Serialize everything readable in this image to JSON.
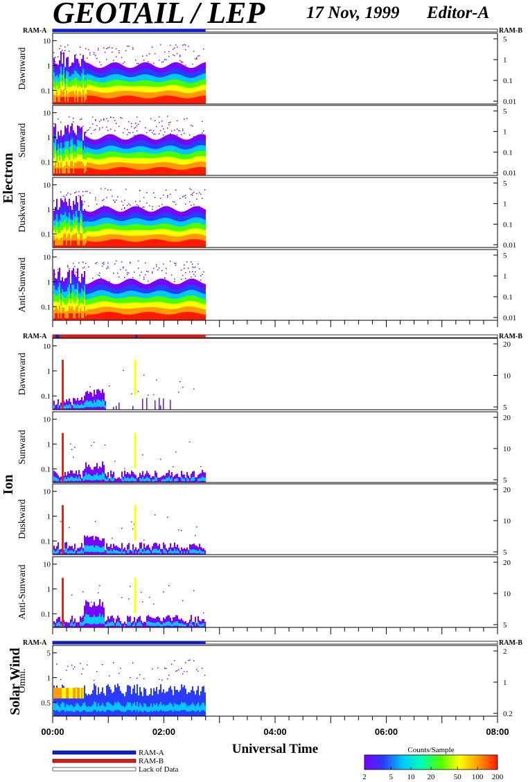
{
  "header": {
    "title": "GEOTAIL / LEP",
    "date": "17 Nov, 1999",
    "editor": "Editor-A"
  },
  "colors": {
    "ram_a": "#0a1fd1",
    "ram_b": "#e01818",
    "lack": "#ffffff",
    "colorscale": [
      "#7a00ff",
      "#2a3cff",
      "#00c8ff",
      "#00ffb4",
      "#4cff00",
      "#ffff00",
      "#ff9a00",
      "#ff1a00"
    ]
  },
  "chart_data": {
    "type": "heatmap",
    "x_axis": {
      "label": "Universal Time",
      "range_hours": [
        0,
        8
      ],
      "ticks": [
        "00:00",
        "02:00",
        "04:00",
        "06:00",
        "08:00"
      ],
      "data_end_hour": 2.75
    },
    "groups": [
      {
        "name": "Electron",
        "ram_left": "RAM-A",
        "ram_right": "RAM-B",
        "ram_bar": [
          {
            "from": 0,
            "to": 2.75,
            "mode": "ram_a"
          }
        ],
        "panels": [
          {
            "name": "Dawnward",
            "left_ticks": [
              "10",
              "1",
              "0.1"
            ],
            "right_ticks": [
              "5",
              "1",
              "0.1",
              "0.01"
            ]
          },
          {
            "name": "Sunward",
            "left_ticks": [
              "10",
              "1",
              "0.1"
            ],
            "right_ticks": [
              "5",
              "1",
              "0.1",
              "0.01"
            ]
          },
          {
            "name": "Duskward",
            "left_ticks": [
              "10",
              "1",
              "0.1"
            ],
            "right_ticks": [
              "5",
              "1",
              "0.1",
              "0.01"
            ]
          },
          {
            "name": "Anti-Sunward",
            "left_ticks": [
              "10",
              "1",
              "0.1"
            ],
            "right_ticks": [
              "5",
              "1",
              "0.1",
              "0.01"
            ]
          }
        ]
      },
      {
        "name": "Ion",
        "ram_left": "RAM-A",
        "ram_right": "RAM-B",
        "ram_bar": [
          {
            "from": 0,
            "to": 0.05,
            "mode": "ram_b"
          },
          {
            "from": 0.05,
            "to": 0.12,
            "mode": "ram_a"
          },
          {
            "from": 0.12,
            "to": 1.48,
            "mode": "ram_b"
          },
          {
            "from": 1.48,
            "to": 1.52,
            "mode": "ram_a"
          },
          {
            "from": 1.52,
            "to": 2.75,
            "mode": "ram_b"
          }
        ],
        "panels": [
          {
            "name": "Dawnward",
            "left_ticks": [
              "10",
              "1",
              "0.1"
            ],
            "right_ticks": [
              "20",
              "10",
              "5"
            ]
          },
          {
            "name": "Sunward",
            "left_ticks": [
              "10",
              "1",
              "0.1"
            ],
            "right_ticks": [
              "20",
              "10",
              "5"
            ]
          },
          {
            "name": "Duskward",
            "left_ticks": [
              "10",
              "1",
              "0.1"
            ],
            "right_ticks": [
              "20",
              "10",
              "5"
            ]
          },
          {
            "name": "Anti-Sunward",
            "left_ticks": [
              "10",
              "1",
              "0.1"
            ],
            "right_ticks": [
              "20",
              "10",
              "5"
            ]
          }
        ]
      },
      {
        "name": "Solar Wind",
        "ram_left": "RAM-A",
        "ram_right": "RAM-B",
        "ram_bar": [
          {
            "from": 0,
            "to": 2.75,
            "mode": "ram_a"
          }
        ],
        "panels": [
          {
            "name": "Omni.",
            "left_ticks": [
              "5",
              "1",
              "0.5"
            ],
            "right_ticks": [
              "2",
              "1",
              "0.2"
            ]
          }
        ]
      }
    ],
    "legend": [
      {
        "label": "RAM-A",
        "mode": "ram_a"
      },
      {
        "label": "RAM-B",
        "mode": "ram_b"
      },
      {
        "label": "Lack of Data",
        "mode": "lack"
      }
    ],
    "colorbar": {
      "title": "Counts/Sample",
      "ticks": [
        "2",
        "5",
        "10",
        "20",
        "50",
        "100",
        "200"
      ],
      "values": [
        2,
        5,
        10,
        20,
        50,
        100,
        200
      ],
      "scale": "log"
    }
  }
}
